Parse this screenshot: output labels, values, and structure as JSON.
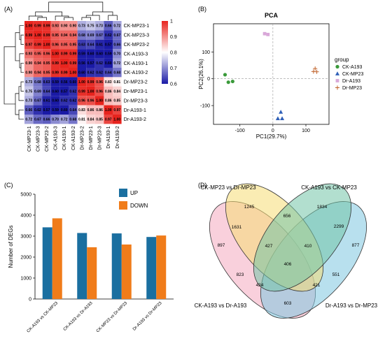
{
  "panel_letters": {
    "a": "(A)",
    "b": "(B)",
    "c": "(C)",
    "d": "(D)"
  },
  "chart_data": [
    {
      "type": "heatmap",
      "samples": [
        "CK-MP23-1",
        "CK-MP23-3",
        "CK-MP23-2",
        "CK-A193-3",
        "CK-A193-1",
        "CK-A193-2",
        "Dr-MP23-2",
        "Dr-MP23-1",
        "Dr-MP23-3",
        "Dr-A193-1",
        "Dr-A193-2"
      ],
      "column_order": [
        "CK-MP23-1",
        "CK-MP23-3",
        "CK-MP23-2",
        "CK-A193-3",
        "CK-A193-1",
        "CK-A193-2",
        "Dr-MP23-2",
        "Dr-MP23-1",
        "Dr-MP23-3",
        "Dr-A193-1",
        "Dr-A193-2"
      ],
      "values": [
        [
          1.0,
          0.99,
          0.99,
          0.93,
          0.9,
          0.9,
          0.73,
          0.75,
          0.73,
          0.66,
          0.72
        ],
        [
          0.99,
          1.0,
          0.99,
          0.95,
          0.94,
          0.94,
          0.68,
          0.69,
          0.67,
          0.62,
          0.67
        ],
        [
          0.97,
          0.99,
          1.0,
          0.96,
          0.95,
          0.95,
          0.63,
          0.64,
          0.61,
          0.57,
          0.66
        ],
        [
          0.93,
          0.95,
          0.96,
          1.0,
          0.99,
          0.99,
          0.59,
          0.6,
          0.6,
          0.59,
          0.7
        ],
        [
          0.9,
          0.94,
          0.95,
          0.99,
          1.0,
          0.99,
          0.56,
          0.57,
          0.62,
          0.6,
          0.72
        ],
        [
          0.9,
          0.94,
          0.95,
          0.99,
          0.99,
          1.0,
          0.6,
          0.62,
          0.62,
          0.64,
          0.68
        ],
        [
          0.73,
          0.68,
          0.63,
          0.59,
          0.56,
          0.6,
          1.0,
          0.99,
          0.96,
          0.83,
          0.81
        ],
        [
          0.75,
          0.69,
          0.64,
          0.6,
          0.57,
          0.62,
          0.99,
          1.0,
          0.96,
          0.86,
          0.84
        ],
        [
          0.73,
          0.67,
          0.61,
          0.6,
          0.62,
          0.62,
          0.96,
          0.96,
          1.0,
          0.86,
          0.85
        ],
        [
          0.66,
          0.62,
          0.57,
          0.59,
          0.6,
          0.64,
          0.83,
          0.86,
          0.86,
          1.0,
          0.97
        ],
        [
          0.72,
          0.67,
          0.66,
          0.7,
          0.72,
          0.68,
          0.81,
          0.84,
          0.85,
          0.97,
          1.0
        ]
      ],
      "colorbar": {
        "min": 0.6,
        "max": 1,
        "ticks": [
          "1",
          "0.9",
          "0.8",
          "0.7",
          "0.6"
        ],
        "colors": {
          "low": "#1a1aa6",
          "mid": "#ffffff",
          "high": "#e8241e"
        }
      }
    },
    {
      "type": "scatter",
      "title": "PCA",
      "xlabel": "PC1(29.7%)",
      "ylabel": "PC2(26.1%)",
      "xlim": [
        -180,
        170
      ],
      "ylim": [
        -170,
        205
      ],
      "xticks": [
        -100,
        0,
        100
      ],
      "yticks": [
        -100,
        0,
        100
      ],
      "legend": {
        "title": "group",
        "placement": "right"
      },
      "series": [
        {
          "name": "CK-A193",
          "marker": "circle",
          "color": "#3a9a3a",
          "points": [
            [
              -145,
              15
            ],
            [
              -135,
              -13
            ],
            [
              -122,
              -10
            ]
          ]
        },
        {
          "name": "CK-MP23",
          "marker": "triangle",
          "color": "#3060b8",
          "points": [
            [
              15,
              -148
            ],
            [
              24,
              -124
            ],
            [
              28,
              -148
            ]
          ]
        },
        {
          "name": "Dr-A193",
          "marker": "square",
          "color": "#d9a8d9",
          "points": [
            [
              -25,
              168
            ],
            [
              -15,
              165
            ]
          ]
        },
        {
          "name": "Dr-MP23",
          "marker": "plus",
          "color": "#c0622a",
          "points": [
            [
              123,
              27
            ],
            [
              128,
              38
            ],
            [
              133,
              26
            ]
          ]
        }
      ]
    },
    {
      "type": "bar",
      "ylabel": "Number of DEGs",
      "ylim": [
        0,
        5000
      ],
      "yticks": [
        0,
        1000,
        2000,
        3000,
        4000,
        5000
      ],
      "categories": [
        "CK-A193 vs CK-MP23",
        "CK-A193 vs Dr-A193",
        "CK-MP23 vs Dr-MP23",
        "Dr-A193 vs Dr-MP23"
      ],
      "series": [
        {
          "name": "UP",
          "color": "#1a6fa0",
          "values": [
            3420,
            3150,
            3130,
            2960
          ]
        },
        {
          "name": "DOWN",
          "color": "#f07c1a",
          "values": [
            3850,
            2470,
            2600,
            3030
          ]
        }
      ],
      "legend": {
        "placement": "top-right"
      }
    },
    {
      "type": "venn",
      "sets": [
        {
          "name": "CK-MP23 vs Dr-MP23",
          "color": "#f6dc74"
        },
        {
          "name": "CK-A193 vs CK-MP23",
          "color": "#72c4a8"
        },
        {
          "name": "CK-A193 vs Dr-A193",
          "color": "#f4a9bf"
        },
        {
          "name": "Dr-A193 vs Dr-MP23",
          "color": "#7ec6e0"
        }
      ],
      "regions": [
        {
          "value": "1245"
        },
        {
          "value": "1834"
        },
        {
          "value": "656"
        },
        {
          "value": "1631"
        },
        {
          "value": "2299"
        },
        {
          "value": "897"
        },
        {
          "value": "427"
        },
        {
          "value": "410"
        },
        {
          "value": "877"
        },
        {
          "value": "406"
        },
        {
          "value": "823"
        },
        {
          "value": "551"
        },
        {
          "value": "424"
        },
        {
          "value": "421"
        },
        {
          "value": "603"
        }
      ]
    }
  ]
}
